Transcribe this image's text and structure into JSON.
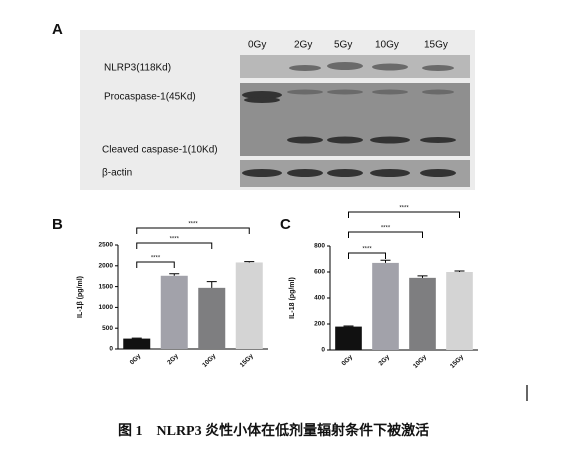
{
  "panel_a": {
    "label": "A",
    "lanes": [
      "0Gy",
      "2Gy",
      "5Gy",
      "10Gy",
      "15Gy"
    ],
    "bands": [
      "NLRP3(118Kd)",
      "Procaspase-1(45Kd)",
      "Cleaved caspase-1(10Kd)",
      "β-actin"
    ]
  },
  "chart_data": [
    {
      "type": "bar",
      "panel": "B",
      "y_label": "IL-1β (pg/ml)",
      "categories": [
        "0Gy",
        "2Gy",
        "10Gy",
        "15Gy"
      ],
      "values": [
        250,
        1760,
        1470,
        2080
      ],
      "errors": [
        10,
        50,
        150,
        20
      ],
      "colors": [
        "#111111",
        "#a2a2aa",
        "#7e7e80",
        "#d4d4d4"
      ],
      "ylim": [
        0,
        2500
      ],
      "yticks": [
        0,
        500,
        1000,
        1500,
        2000,
        2500
      ],
      "annotations": [
        "****",
        "****",
        "****"
      ]
    },
    {
      "type": "bar",
      "panel": "C",
      "y_label": "IL-18 (pg/ml)",
      "categories": [
        "0Gy",
        "2Gy",
        "10Gy",
        "15Gy"
      ],
      "values": [
        180,
        670,
        555,
        600
      ],
      "errors": [
        5,
        20,
        15,
        8
      ],
      "colors": [
        "#111111",
        "#a2a2aa",
        "#7e7e80",
        "#d4d4d4"
      ],
      "ylim": [
        0,
        800
      ],
      "yticks": [
        0,
        200,
        400,
        600,
        800
      ],
      "annotations": [
        "****",
        "****",
        "****"
      ]
    }
  ],
  "caption": "图 1　NLRP3 炎性小体在低剂量辐射条件下被激活"
}
